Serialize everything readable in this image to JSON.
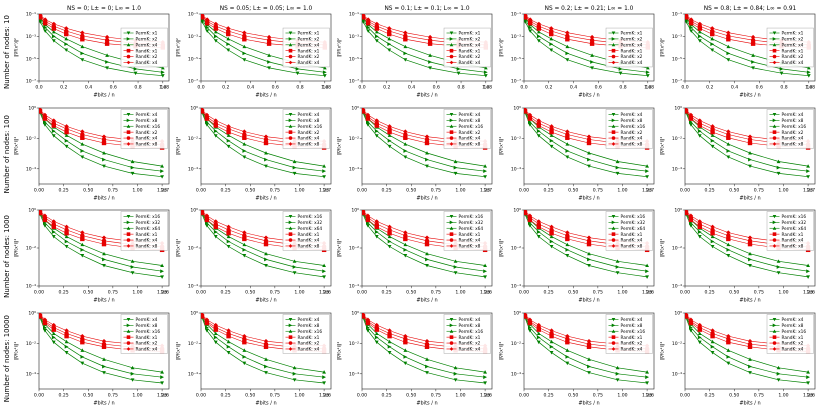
{
  "figure": {
    "background": "#ffffff",
    "col_titles": [
      "NS = 0; L± = 0; L∞ ≃ 1.0",
      "NS = 0.05; L± ≃ 0.05; L∞ ≃ 1.0",
      "NS = 0.1; L± ≃ 0.1; L∞ ≃ 1.0",
      "NS = 0.2; L± ≃ 0.21; L∞ ≃ 1.0",
      "NS = 0.8; L± ≃ 0.84; L∞ ≃ 0.91"
    ],
    "xlabel": "#bits / n",
    "ylabel": "‖∇f(xᵏ)‖²",
    "colors": {
      "permk": "#008000",
      "randk": "#e60000"
    }
  },
  "chart_data": {
    "type": "line",
    "grid": {
      "rows": 4,
      "cols": 5
    },
    "legend_position_row1": "center-right",
    "legend_position_other_rows": "upper-right",
    "rows": [
      {
        "row_label": "Number of nodes: 10",
        "x_scale_label": "1e8",
        "xlim": [
          0,
          1.05
        ],
        "xtick_vals": [
          0,
          0.2,
          0.4,
          0.6,
          0.8,
          1.0
        ],
        "xtick_labels": [
          "0.0",
          "0.2",
          "0.4",
          "0.6",
          "0.8",
          "1.0"
        ],
        "ylog_top": -1,
        "ylog_bottom": -7,
        "ytick_decades": [
          -1,
          -3,
          -5,
          -7
        ],
        "ytick_labels": [
          "10⁻¹",
          "10⁻³",
          "10⁻⁵",
          "10⁻⁷"
        ],
        "legend_loc": "center-right",
        "x": [
          0.01,
          0.05,
          0.12,
          0.22,
          0.35,
          0.55,
          0.78,
          1.0
        ],
        "series": [
          {
            "label": "PermK: x1",
            "group": "permk",
            "marker": "triangle-down",
            "y": [
              0.02,
              0.003,
              0.0004,
              6e-05,
              8e-06,
              1.5e-06,
              5e-07,
              3e-07
            ]
          },
          {
            "label": "PermK: x2",
            "group": "permk",
            "marker": "triangle-right",
            "y": [
              0.03,
              0.006,
              0.001,
              0.0002,
              3e-05,
              5e-06,
              1.2e-06,
              6e-07
            ]
          },
          {
            "label": "PermK: x4",
            "group": "permk",
            "marker": "triangle-up",
            "y": [
              0.045,
              0.011,
              0.0025,
              0.0006,
              0.00012,
              2e-05,
              4e-06,
              1.5e-06
            ]
          },
          {
            "label": "RandK: x1",
            "group": "randk",
            "marker": "square",
            "y": [
              0.05,
              0.015,
              0.005,
              0.0016,
              0.00055,
              0.00022,
              0.00013,
              0.0001
            ]
          },
          {
            "label": "RandK: x2",
            "group": "randk",
            "marker": "circle",
            "y": [
              0.065,
              0.022,
              0.008,
              0.003,
              0.0011,
              0.00045,
              0.00024,
              0.00018
            ]
          },
          {
            "label": "RandK: x4",
            "group": "randk",
            "marker": "diamond",
            "y": [
              0.08,
              0.032,
              0.013,
              0.0052,
              0.0021,
              0.00085,
              0.00042,
              0.0003
            ]
          }
        ]
      },
      {
        "row_label": "Number of nodes: 100",
        "x_scale_label": "1e7",
        "xlim": [
          0,
          1.32
        ],
        "xtick_vals": [
          0,
          0.25,
          0.5,
          0.75,
          1.0,
          1.25
        ],
        "xtick_labels": [
          "0.00",
          "0.25",
          "0.50",
          "0.75",
          "1.00",
          "1.25"
        ],
        "ylog_top": 0,
        "ylog_bottom": -5,
        "ytick_decades": [
          0,
          -2,
          -4
        ],
        "ytick_labels": [
          "10⁰",
          "10⁻²",
          "10⁻⁴"
        ],
        "legend_loc": "upper-right",
        "x": [
          0.01,
          0.06,
          0.15,
          0.28,
          0.44,
          0.66,
          0.95,
          1.25
        ],
        "series": [
          {
            "label": "PermK: x4",
            "group": "permk",
            "marker": "triangle-down",
            "y": [
              0.5,
              0.08,
              0.015,
              0.003,
              0.0006,
              0.00015,
              5e-05,
              3e-05
            ]
          },
          {
            "label": "PermK: x8",
            "group": "permk",
            "marker": "triangle-right",
            "y": [
              0.6,
              0.12,
              0.03,
              0.007,
              0.0015,
              0.0004,
              0.00012,
              7e-05
            ]
          },
          {
            "label": "PermK: x16",
            "group": "permk",
            "marker": "triangle-up",
            "y": [
              0.7,
              0.2,
              0.055,
              0.016,
              0.0042,
              0.0011,
              0.0003,
              0.00015
            ]
          },
          {
            "label": "RandK: x2",
            "group": "randk",
            "marker": "square",
            "y": [
              0.6,
              0.2,
              0.07,
              0.026,
              0.011,
              0.005,
              0.003,
              0.0025
            ]
          },
          {
            "label": "RandK: x4",
            "group": "randk",
            "marker": "circle",
            "y": [
              0.7,
              0.26,
              0.1,
              0.042,
              0.018,
              0.0085,
              0.005,
              0.004
            ]
          },
          {
            "label": "RandK: x8",
            "group": "randk",
            "marker": "diamond",
            "y": [
              0.8,
              0.35,
              0.15,
              0.062,
              0.028,
              0.013,
              0.008,
              0.0065
            ]
          }
        ]
      },
      {
        "row_label": "Number of nodes: 1000",
        "x_scale_label": "1e6",
        "xlim": [
          0,
          1.32
        ],
        "xtick_vals": [
          0,
          0.25,
          0.5,
          0.75,
          1.0,
          1.25
        ],
        "xtick_labels": [
          "0.00",
          "0.25",
          "0.50",
          "0.75",
          "1.00",
          "1.25"
        ],
        "ylog_top": 0,
        "ylog_bottom": -4,
        "ytick_decades": [
          0,
          -2,
          -4
        ],
        "ytick_labels": [
          "10⁰",
          "10⁻²",
          "10⁻⁴"
        ],
        "legend_loc": "upper-right",
        "x": [
          0.01,
          0.06,
          0.15,
          0.28,
          0.44,
          0.66,
          0.95,
          1.25
        ],
        "series": [
          {
            "label": "PermK: x16",
            "group": "permk",
            "marker": "triangle-down",
            "y": [
              0.6,
              0.15,
              0.04,
              0.012,
              0.004,
              0.0012,
              0.0005,
              0.0003
            ]
          },
          {
            "label": "PermK: x32",
            "group": "permk",
            "marker": "triangle-right",
            "y": [
              0.7,
              0.21,
              0.07,
              0.022,
              0.008,
              0.0025,
              0.001,
              0.0006
            ]
          },
          {
            "label": "PermK: x64",
            "group": "permk",
            "marker": "triangle-up",
            "y": [
              0.8,
              0.3,
              0.11,
              0.04,
              0.015,
              0.005,
              0.002,
              0.0012
            ]
          },
          {
            "label": "RandK: x1",
            "group": "randk",
            "marker": "square",
            "y": [
              0.7,
              0.3,
              0.13,
              0.06,
              0.03,
              0.016,
              0.01,
              0.008
            ]
          },
          {
            "label": "RandK: x4",
            "group": "randk",
            "marker": "circle",
            "y": [
              0.8,
              0.4,
              0.18,
              0.09,
              0.045,
              0.024,
              0.015,
              0.012
            ]
          },
          {
            "label": "RandK: x8",
            "group": "randk",
            "marker": "diamond",
            "y": [
              0.9,
              0.5,
              0.25,
              0.13,
              0.065,
              0.035,
              0.022,
              0.018
            ]
          }
        ]
      },
      {
        "row_label": "Number of nodes: 10000",
        "x_scale_label": "1e6",
        "xlim": [
          0,
          1.32
        ],
        "xtick_vals": [
          0,
          0.25,
          0.5,
          0.75,
          1.0,
          1.25
        ],
        "xtick_labels": [
          "0.00",
          "0.25",
          "0.50",
          "0.75",
          "1.00",
          "1.25"
        ],
        "ylog_top": 0,
        "ylog_bottom": -5,
        "ytick_decades": [
          0,
          -2,
          -4
        ],
        "ytick_labels": [
          "10⁰",
          "10⁻²",
          "10⁻⁴"
        ],
        "legend_loc": "upper-right",
        "x": [
          0.01,
          0.06,
          0.15,
          0.28,
          0.44,
          0.66,
          0.95,
          1.25
        ],
        "series": [
          {
            "label": "PermK: x4",
            "group": "permk",
            "marker": "triangle-down",
            "y": [
              0.5,
              0.07,
              0.012,
              0.0025,
              0.0005,
              0.00012,
              4e-05,
              2.5e-05
            ]
          },
          {
            "label": "PermK: x8",
            "group": "permk",
            "marker": "triangle-right",
            "y": [
              0.6,
              0.11,
              0.025,
              0.006,
              0.0013,
              0.0003,
              0.0001,
              6e-05
            ]
          },
          {
            "label": "PermK: x16",
            "group": "permk",
            "marker": "triangle-up",
            "y": [
              0.7,
              0.18,
              0.045,
              0.013,
              0.0035,
              0.0009,
              0.00025,
              0.00013
            ]
          },
          {
            "label": "RandK: x1",
            "group": "randk",
            "marker": "square",
            "y": [
              0.6,
              0.22,
              0.08,
              0.03,
              0.012,
              0.006,
              0.0035,
              0.003
            ]
          },
          {
            "label": "RandK: x2",
            "group": "randk",
            "marker": "circle",
            "y": [
              0.7,
              0.28,
              0.11,
              0.045,
              0.02,
              0.009,
              0.0055,
              0.0045
            ]
          },
          {
            "label": "RandK: x4",
            "group": "randk",
            "marker": "diamond",
            "y": [
              0.8,
              0.36,
              0.16,
              0.07,
              0.03,
              0.014,
              0.009,
              0.007
            ]
          }
        ]
      }
    ]
  }
}
